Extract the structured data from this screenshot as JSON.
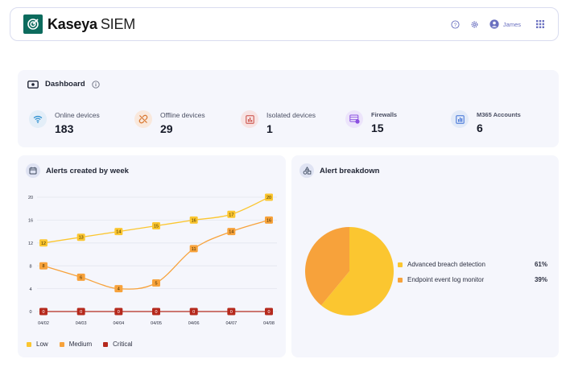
{
  "header": {
    "brand": "Kaseya",
    "brand_suffix": "SIEM",
    "user_name": "James",
    "icons": [
      "help-icon",
      "gear-icon",
      "user-icon",
      "apps-grid-icon"
    ]
  },
  "summary": {
    "title": "Dashboard",
    "stats": [
      {
        "label": "Online devices",
        "value": "183",
        "icon": "wifi-icon",
        "icon_bg": "#e3eef8",
        "icon_color": "#2b8fd0"
      },
      {
        "label": "Offline devices",
        "value": "29",
        "icon": "broken-link-icon",
        "icon_bg": "#f9e8dc",
        "icon_color": "#d8752d"
      },
      {
        "label": "Isolated devices",
        "value": "1",
        "icon": "chart-box-icon",
        "icon_bg": "#f7e3e3",
        "icon_color": "#c8483f"
      },
      {
        "label": "Firewalls",
        "value": "15",
        "icon": "firewall-icon",
        "icon_bg": "#ece4fb",
        "icon_color": "#8a4fe0"
      },
      {
        "label": "M365 Accounts",
        "value": "6",
        "icon": "bar-chart-icon",
        "icon_bg": "#e2eaf8",
        "icon_color": "#3d6fd6"
      }
    ]
  },
  "alerts_week": {
    "title": "Alerts created by week",
    "legend": [
      {
        "label": "Low",
        "color": "#fbc630"
      },
      {
        "label": "Medium",
        "color": "#f7a23b"
      },
      {
        "label": "Critical",
        "color": "#b5291d"
      }
    ]
  },
  "alert_breakdown": {
    "title": "Alert breakdown",
    "items": [
      {
        "label": "Advanced breach detection",
        "pct": "61%",
        "color": "#fbc630"
      },
      {
        "label": "Endpoint event log monitor",
        "pct": "39%",
        "color": "#f7a23b"
      }
    ]
  },
  "chart_data": [
    {
      "type": "line",
      "title": "Alerts created by week",
      "x": [
        "04/02",
        "04/03",
        "04/04",
        "04/05",
        "04/06",
        "04/07",
        "04/08"
      ],
      "yticks": [
        0,
        4,
        8,
        12,
        16,
        20
      ],
      "ylim": [
        0,
        20
      ],
      "grid": true,
      "legend_position": "bottom-left",
      "series": [
        {
          "name": "Low",
          "color": "#fbc630",
          "values": [
            12,
            13,
            14,
            15,
            16,
            17,
            20
          ]
        },
        {
          "name": "Medium",
          "color": "#f7a23b",
          "values": [
            8,
            6,
            4,
            5,
            11,
            14,
            16
          ]
        },
        {
          "name": "Critical",
          "color": "#b5291d",
          "values": [
            0,
            0,
            0,
            0,
            0,
            0,
            0
          ]
        }
      ]
    },
    {
      "type": "pie",
      "title": "Alert breakdown",
      "categories": [
        "Advanced breach detection",
        "Endpoint event log monitor"
      ],
      "values": [
        61,
        39
      ],
      "colors": [
        "#fbc630",
        "#f7a23b"
      ],
      "legend_position": "right"
    }
  ]
}
